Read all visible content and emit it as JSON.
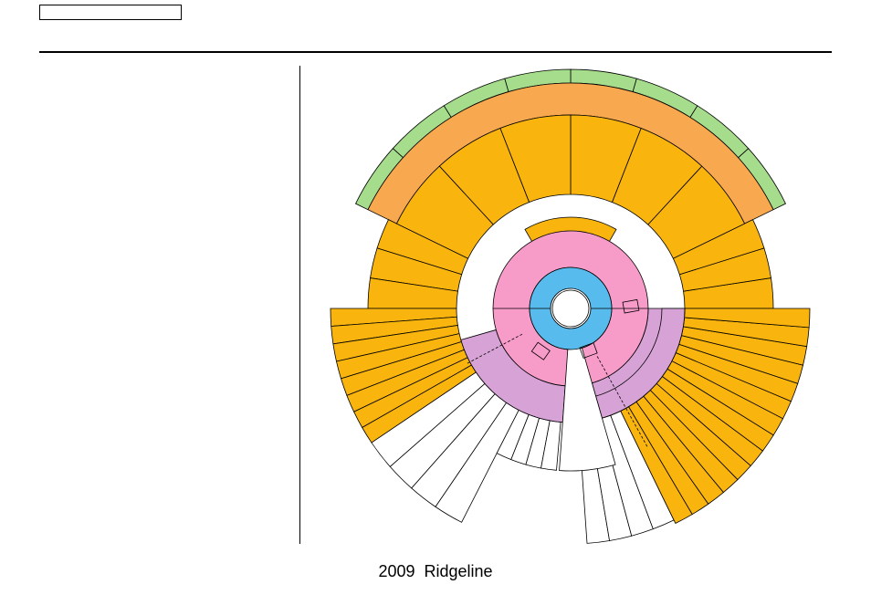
{
  "footer": {
    "model": "2009  Ridgeline"
  },
  "colors": {
    "center": "#ffffff",
    "blue": "#57bced",
    "pink": "#f79bc8",
    "lavender": "#d7a3d6",
    "amber": "#f9b40e",
    "orange": "#f8a84e",
    "green": "#a6dd8c",
    "empty": "#ffffff",
    "stroke": "#000000"
  }
}
